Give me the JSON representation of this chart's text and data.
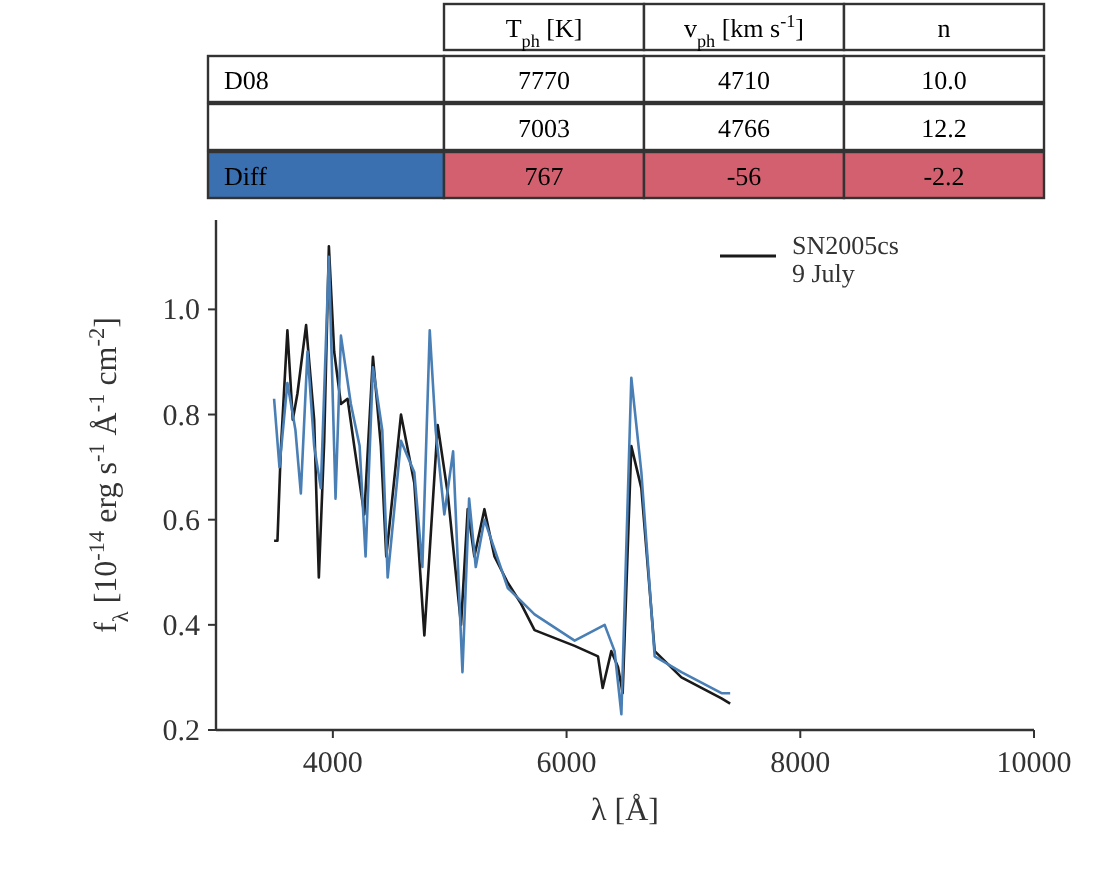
{
  "chart_data": [
    {
      "type": "heatmap",
      "categories": [
        "T$_{ph}$ [K]",
        "v$_{ph}$ [km s$^{-1}$]",
        "n"
      ],
      "y_categories": [
        "D08",
        null,
        "Diff"
      ],
      "cells": [
        [
          7770,
          4710,
          10.0
        ],
        [
          7003,
          4766,
          12.2
        ],
        [
          767,
          -56,
          -2.2
        ]
      ],
      "cell_labels": [
        [
          "7770",
          "4710",
          "10.0"
        ],
        [
          "7003",
          "4766",
          "12.2"
        ],
        [
          "767",
          "-56",
          "-2.2"
        ]
      ]
    },
    {
      "type": "line",
      "xlabel": "λ [Å]",
      "ylabel": "f$_{λ}$ [10$^{-14}$ erg s$^{-1}$ Å$^{-1}$ cm$^{-2}$]",
      "xlim": [
        3000,
        10000
      ],
      "xticks": [
        4000,
        6000,
        8000,
        10000
      ],
      "ylim": [
        0.2,
        1.17
      ],
      "yticks": [
        0.2,
        0.4,
        0.6,
        0.8,
        {
          "value": 1.0,
          "label": "1.0"
        }
      ],
      "grid": false,
      "legend": "top right",
      "line_style": "solid",
      "series": [
        {
          "name": "SN2005cs\n9 July",
          "color": "#1a1a1a",
          "x": [
            3497,
            3526,
            3554,
            3611,
            3657,
            3697,
            3771,
            3840,
            3880,
            3926,
            3966,
            4011,
            4069,
            4126,
            4183,
            4269,
            4343,
            4411,
            4457,
            4583,
            4697,
            4783,
            4897,
            4983,
            5097,
            5154,
            5211,
            5297,
            5383,
            5497,
            5611,
            5726,
            5840,
            6069,
            6269,
            6309,
            6383,
            6440,
            6480,
            6554,
            6640,
            6754,
            6983,
            7326,
            7400
          ],
          "values": [
            0.56,
            0.56,
            0.73,
            0.96,
            0.79,
            0.84,
            0.97,
            0.79,
            0.49,
            0.75,
            1.12,
            0.92,
            0.82,
            0.83,
            0.74,
            0.61,
            0.91,
            0.74,
            0.53,
            0.8,
            0.67,
            0.38,
            0.78,
            0.65,
            0.4,
            0.62,
            0.53,
            0.62,
            0.53,
            0.48,
            0.44,
            0.39,
            0.38,
            0.36,
            0.34,
            0.28,
            0.35,
            0.32,
            0.27,
            0.74,
            0.66,
            0.35,
            0.3,
            0.26,
            0.25
          ]
        },
        {
          "color": "#4a7fb5",
          "x": [
            3497,
            3543,
            3611,
            3680,
            3726,
            3783,
            3840,
            3897,
            3966,
            4023,
            4069,
            4154,
            4229,
            4280,
            4343,
            4423,
            4469,
            4583,
            4697,
            4766,
            4829,
            4880,
            4954,
            5029,
            5109,
            5166,
            5223,
            5297,
            5497,
            5726,
            6069,
            6326,
            6411,
            6469,
            6554,
            6640,
            6754,
            6983,
            7326,
            7400
          ],
          "values": [
            0.83,
            0.7,
            0.86,
            0.77,
            0.65,
            0.92,
            0.74,
            0.66,
            1.1,
            0.64,
            0.95,
            0.82,
            0.74,
            0.53,
            0.89,
            0.77,
            0.49,
            0.75,
            0.69,
            0.51,
            0.96,
            0.77,
            0.61,
            0.73,
            0.31,
            0.64,
            0.51,
            0.6,
            0.47,
            0.42,
            0.37,
            0.4,
            0.35,
            0.23,
            0.87,
            0.69,
            0.34,
            0.31,
            0.27,
            0.27
          ]
        }
      ]
    }
  ]
}
